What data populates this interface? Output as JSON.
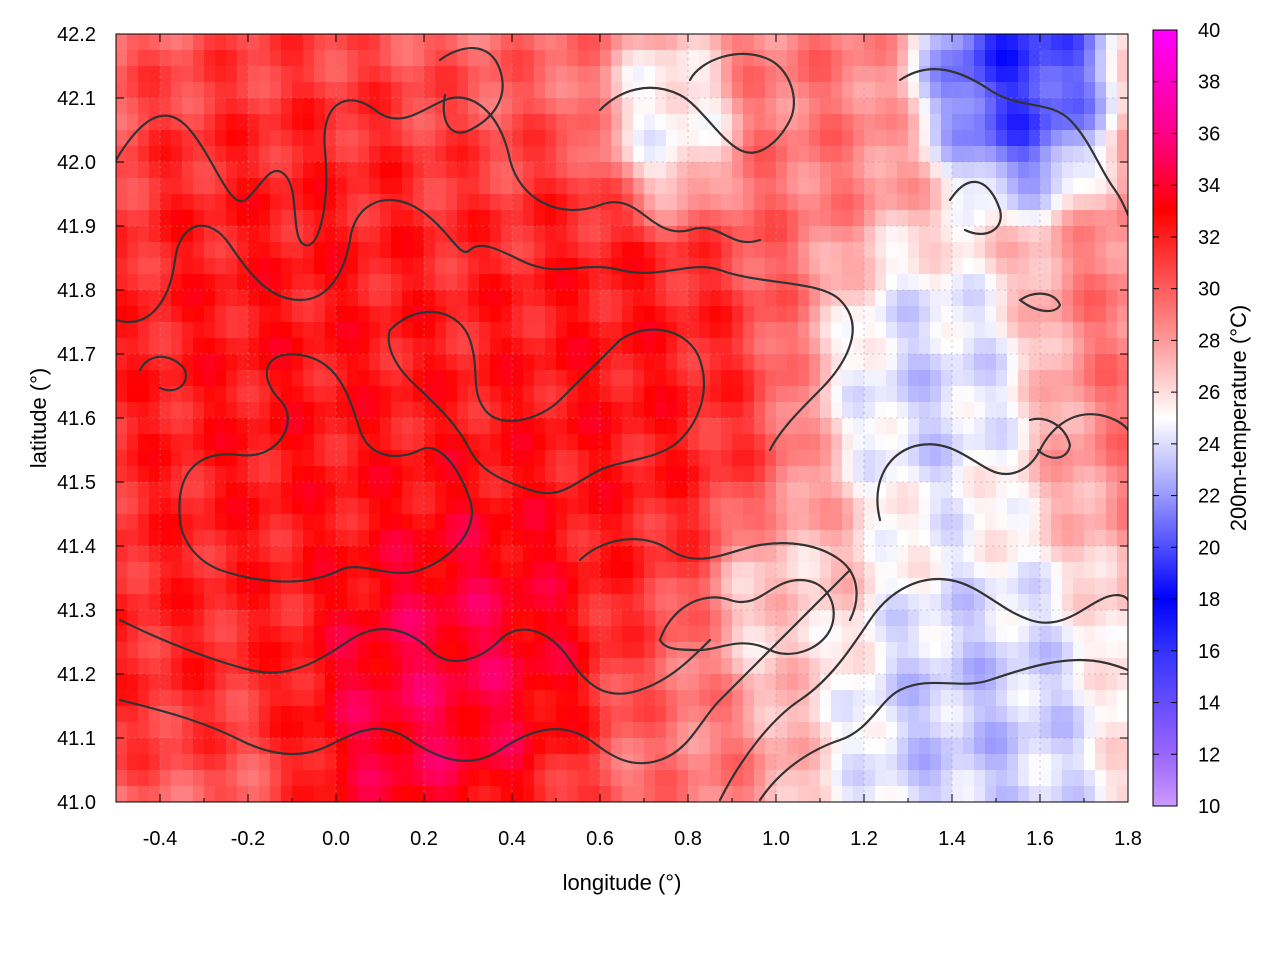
{
  "chart_data": {
    "type": "heatmap",
    "title": "",
    "xlabel": "longitude (°)",
    "ylabel": "latitude (°)",
    "colorbar_label": "200m-temperature (°C)",
    "xlim": [
      -0.5,
      1.8
    ],
    "ylim": [
      41.0,
      42.2
    ],
    "clim": [
      10,
      40
    ],
    "x_ticks": [
      "-0.4",
      "-0.2",
      "0.0",
      "0.2",
      "0.4",
      "0.6",
      "0.8",
      "1.0",
      "1.2",
      "1.4",
      "1.6",
      "1.8"
    ],
    "x_tick_values": [
      -0.4,
      -0.2,
      0.0,
      0.2,
      0.4,
      0.6,
      0.8,
      1.0,
      1.2,
      1.4,
      1.6,
      1.8
    ],
    "y_ticks": [
      "41.0",
      "41.1",
      "41.2",
      "41.3",
      "41.4",
      "41.5",
      "41.6",
      "41.7",
      "41.8",
      "41.9",
      "42.0",
      "42.1",
      "42.2"
    ],
    "y_tick_values": [
      41.0,
      41.1,
      41.2,
      41.3,
      41.4,
      41.5,
      41.6,
      41.7,
      41.8,
      41.9,
      42.0,
      42.1,
      42.2
    ],
    "colorbar_ticks": [
      "10",
      "12",
      "14",
      "16",
      "18",
      "20",
      "22",
      "24",
      "26",
      "28",
      "30",
      "32",
      "34",
      "36",
      "38",
      "40"
    ],
    "colorbar_tick_values": [
      10,
      12,
      14,
      16,
      18,
      20,
      22,
      24,
      26,
      28,
      30,
      32,
      34,
      36,
      38,
      40
    ],
    "colormap": [
      {
        "value": 10,
        "color": "#cc99ff"
      },
      {
        "value": 12,
        "color": "#9966ff"
      },
      {
        "value": 16,
        "color": "#3333ff"
      },
      {
        "value": 18,
        "color": "#0000ff"
      },
      {
        "value": 22,
        "color": "#9999ff"
      },
      {
        "value": 25,
        "color": "#ffffff"
      },
      {
        "value": 28,
        "color": "#ff9999"
      },
      {
        "value": 33,
        "color": "#ff0000"
      },
      {
        "value": 36,
        "color": "#ff0088"
      },
      {
        "value": 40,
        "color": "#ff00ff"
      }
    ],
    "grid": true,
    "contours": true,
    "temperature_blobs": [
      {
        "lon": -0.1,
        "lat": 41.65,
        "r": 0.45,
        "t": 33
      },
      {
        "lon": 0.3,
        "lat": 41.25,
        "r": 0.25,
        "t": 35
      },
      {
        "lon": 0.15,
        "lat": 41.15,
        "r": 0.2,
        "t": 35
      },
      {
        "lon": 0.6,
        "lat": 41.65,
        "r": 0.3,
        "t": 33
      },
      {
        "lon": -0.4,
        "lat": 41.3,
        "r": 0.2,
        "t": 32
      },
      {
        "lon": 1.55,
        "lat": 42.15,
        "r": 0.18,
        "t": 18
      },
      {
        "lon": 1.35,
        "lat": 41.65,
        "r": 0.2,
        "t": 23
      },
      {
        "lon": 1.45,
        "lat": 41.1,
        "r": 0.3,
        "t": 22.5
      },
      {
        "lon": 0.75,
        "lat": 42.05,
        "r": 0.12,
        "t": 24
      },
      {
        "lon": 1.0,
        "lat": 41.3,
        "r": 0.12,
        "t": 26
      }
    ]
  }
}
